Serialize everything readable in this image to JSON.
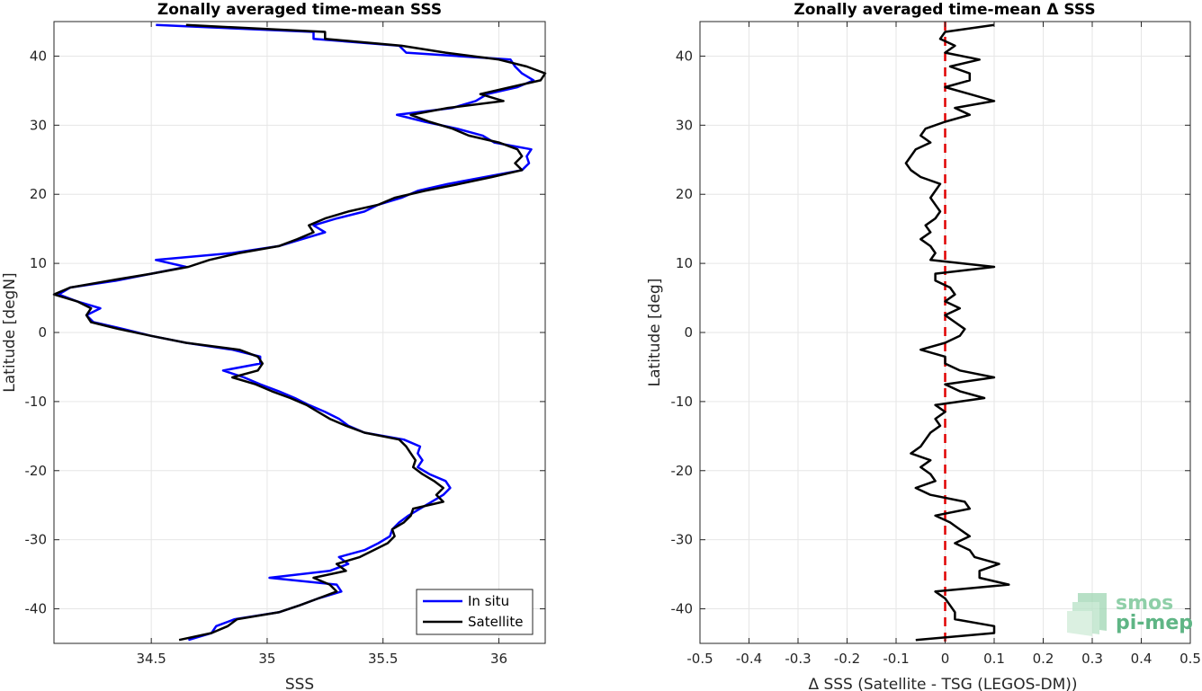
{
  "chart_data": [
    {
      "type": "line",
      "title": "Zonally averaged time-mean SSS",
      "xlabel": "SSS",
      "ylabel": "Latitude [degN]",
      "xlim": [
        34.08,
        36.2
      ],
      "ylim": [
        -45,
        45
      ],
      "xticks": [
        34.5,
        35,
        35.5,
        36
      ],
      "yticks": [
        -40,
        -30,
        -20,
        -10,
        0,
        10,
        20,
        30,
        40
      ],
      "grid": true,
      "legend": {
        "placement": "bottom-right",
        "entries": [
          "In situ",
          "Satellite"
        ]
      },
      "series": [
        {
          "name": "In situ",
          "color": "#0000ff",
          "lat": [
            -44.5,
            -43.5,
            -42.5,
            -41.5,
            -40.5,
            -39.5,
            -38.5,
            -37.5,
            -36.5,
            -35.5,
            -34.5,
            -33.5,
            -32.5,
            -31.5,
            -30.5,
            -29.5,
            -28.5,
            -27.5,
            -26.5,
            -25.5,
            -24.5,
            -23.5,
            -22.5,
            -21.5,
            -20.5,
            -19.5,
            -18.5,
            -17.5,
            -16.5,
            -15.5,
            -14.5,
            -13.5,
            -12.5,
            -11.5,
            -10.5,
            -9.5,
            -8.5,
            -7.5,
            -6.5,
            -5.5,
            -4.5,
            -3.5,
            -2.5,
            -1.5,
            -0.5,
            0.5,
            1.5,
            2.5,
            3.5,
            4.5,
            5.5,
            6.5,
            7.5,
            8.5,
            9.5,
            10.5,
            11.5,
            12.5,
            13.5,
            14.5,
            15.5,
            16.5,
            17.5,
            18.5,
            19.5,
            20.5,
            21.5,
            22.5,
            23.5,
            24.5,
            25.5,
            26.5,
            27.5,
            28.5,
            29.5,
            30.5,
            31.5,
            32.5,
            33.5,
            34.5,
            35.5,
            36.5,
            37.5,
            38.5,
            39.5,
            40.5,
            41.5,
            42.5,
            43.5,
            44.5
          ],
          "values": [
            34.66,
            34.76,
            34.78,
            34.86,
            35.05,
            35.14,
            35.22,
            35.32,
            35.3,
            35.01,
            35.27,
            35.35,
            35.31,
            35.42,
            35.48,
            35.53,
            35.54,
            35.57,
            35.61,
            35.66,
            35.71,
            35.76,
            35.79,
            35.77,
            35.7,
            35.65,
            35.67,
            35.65,
            35.66,
            35.59,
            35.42,
            35.35,
            35.31,
            35.25,
            35.18,
            35.12,
            35.05,
            34.97,
            34.9,
            34.81,
            34.97,
            34.97,
            34.85,
            34.65,
            34.5,
            34.38,
            34.25,
            34.22,
            34.28,
            34.18,
            34.1,
            34.15,
            34.35,
            34.5,
            34.65,
            34.52,
            34.85,
            35.05,
            35.15,
            35.25,
            35.2,
            35.3,
            35.42,
            35.48,
            35.58,
            35.65,
            35.78,
            35.94,
            36.1,
            36.13,
            36.12,
            36.14,
            35.98,
            35.93,
            35.82,
            35.68,
            35.56,
            35.8,
            35.9,
            35.95,
            36.08,
            36.15,
            36.1,
            36.07,
            36.05,
            35.6,
            35.57,
            35.2,
            35.2,
            34.52
          ],
          "opacity_note": ""
        },
        {
          "name": "Satellite",
          "color": "#000000",
          "lat": [
            -44.5,
            -43.5,
            -42.5,
            -41.5,
            -40.5,
            -39.5,
            -38.5,
            -37.5,
            -36.5,
            -35.5,
            -34.5,
            -33.5,
            -32.5,
            -31.5,
            -30.5,
            -29.5,
            -28.5,
            -27.5,
            -26.5,
            -25.5,
            -24.5,
            -23.5,
            -22.5,
            -21.5,
            -20.5,
            -19.5,
            -18.5,
            -17.5,
            -16.5,
            -15.5,
            -14.5,
            -13.5,
            -12.5,
            -11.5,
            -10.5,
            -9.5,
            -8.5,
            -7.5,
            -6.5,
            -5.5,
            -4.5,
            -3.5,
            -2.5,
            -1.5,
            -0.5,
            0.5,
            1.5,
            2.5,
            3.5,
            4.5,
            5.5,
            6.5,
            7.5,
            8.5,
            9.5,
            10.5,
            11.5,
            12.5,
            13.5,
            14.5,
            15.5,
            16.5,
            17.5,
            18.5,
            19.5,
            20.5,
            21.5,
            22.5,
            23.5,
            24.5,
            25.5,
            26.5,
            27.5,
            28.5,
            29.5,
            30.5,
            31.5,
            32.5,
            33.5,
            34.5,
            35.5,
            36.5,
            37.5,
            38.5,
            39.5,
            40.5,
            41.5,
            42.5,
            43.5,
            44.5
          ],
          "values": [
            34.62,
            34.76,
            34.83,
            34.87,
            35.05,
            35.14,
            35.22,
            35.3,
            35.27,
            35.2,
            35.34,
            35.3,
            35.4,
            35.46,
            35.52,
            35.55,
            35.54,
            35.59,
            35.62,
            35.63,
            35.76,
            35.73,
            35.76,
            35.72,
            35.67,
            35.63,
            35.64,
            35.62,
            35.6,
            35.57,
            35.42,
            35.34,
            35.27,
            35.22,
            35.17,
            35.1,
            35.02,
            34.95,
            34.85,
            34.96,
            34.98,
            34.96,
            34.88,
            34.65,
            34.5,
            34.36,
            34.24,
            34.22,
            34.24,
            34.18,
            34.08,
            34.15,
            34.32,
            34.5,
            34.66,
            34.75,
            34.88,
            35.05,
            35.13,
            35.2,
            35.18,
            35.25,
            35.35,
            35.48,
            35.55,
            35.68,
            35.83,
            35.97,
            36.1,
            36.07,
            36.1,
            36.08,
            36.0,
            35.87,
            35.8,
            35.7,
            35.62,
            35.78,
            36.02,
            35.92,
            36.05,
            36.18,
            36.2,
            36.12,
            36.0,
            35.77,
            35.58,
            35.25,
            35.25,
            34.65
          ]
        }
      ]
    },
    {
      "type": "line",
      "title": "Zonally averaged time-mean Δ SSS",
      "xlabel": "Δ SSS (Satellite - TSG (LEGOS-DM))",
      "ylabel": "Latitude [deg]",
      "xlim": [
        -0.5,
        0.5
      ],
      "ylim": [
        -45,
        45
      ],
      "xticks": [
        -0.5,
        -0.4,
        -0.3,
        -0.2,
        -0.1,
        0,
        0.1,
        0.2,
        0.3,
        0.4,
        0.5
      ],
      "yticks": [
        -40,
        -30,
        -20,
        -10,
        0,
        10,
        20,
        30,
        40
      ],
      "grid": true,
      "reference_line": {
        "x": 0,
        "color": "#e00000",
        "style": "dashed"
      },
      "series": [
        {
          "color": "#000000",
          "lat": [
            -44.5,
            -43.5,
            -42.5,
            -41.5,
            -40.5,
            -39.5,
            -38.5,
            -37.5,
            -36.5,
            -35.5,
            -34.5,
            -33.5,
            -32.5,
            -31.5,
            -30.5,
            -29.5,
            -28.5,
            -27.5,
            -26.5,
            -25.5,
            -24.5,
            -23.5,
            -22.5,
            -21.5,
            -20.5,
            -19.5,
            -18.5,
            -17.5,
            -16.5,
            -15.5,
            -14.5,
            -13.5,
            -12.5,
            -11.5,
            -10.5,
            -9.5,
            -8.5,
            -7.5,
            -6.5,
            -5.5,
            -4.5,
            -3.5,
            -2.5,
            -1.5,
            -0.5,
            0.5,
            1.5,
            2.5,
            3.5,
            4.5,
            5.5,
            6.5,
            7.5,
            8.5,
            9.5,
            10.5,
            11.5,
            12.5,
            13.5,
            14.5,
            15.5,
            16.5,
            17.5,
            18.5,
            19.5,
            20.5,
            21.5,
            22.5,
            23.5,
            24.5,
            25.5,
            26.5,
            27.5,
            28.5,
            29.5,
            30.5,
            31.5,
            32.5,
            33.5,
            34.5,
            35.5,
            36.5,
            37.5,
            38.5,
            39.5,
            40.5,
            41.5,
            42.5,
            43.5,
            44.5
          ],
          "values": [
            -0.06,
            0.1,
            0.1,
            0.02,
            0.02,
            0.01,
            0.0,
            -0.02,
            0.13,
            0.07,
            0.07,
            0.11,
            0.06,
            0.05,
            0.02,
            0.05,
            0.03,
            0.01,
            -0.02,
            0.05,
            0.04,
            -0.03,
            -0.06,
            -0.02,
            -0.03,
            -0.05,
            -0.03,
            -0.07,
            -0.05,
            -0.04,
            -0.03,
            -0.01,
            -0.02,
            0.0,
            -0.02,
            0.08,
            0.03,
            0.0,
            0.1,
            0.03,
            0.0,
            0.0,
            -0.05,
            0.0,
            0.03,
            0.04,
            0.02,
            0.0,
            0.03,
            0.0,
            0.02,
            0.01,
            -0.02,
            -0.02,
            0.1,
            -0.03,
            -0.02,
            -0.03,
            -0.05,
            -0.03,
            -0.04,
            -0.02,
            -0.01,
            -0.02,
            -0.03,
            -0.02,
            -0.01,
            -0.05,
            -0.07,
            -0.08,
            -0.07,
            -0.06,
            -0.03,
            -0.05,
            -0.04,
            0.0,
            0.05,
            0.02,
            0.1,
            0.05,
            0.0,
            0.05,
            0.05,
            0.01,
            0.07,
            0.0,
            0.02,
            -0.01,
            0.0,
            0.1
          ]
        }
      ]
    }
  ],
  "logo": {
    "line1": "smos",
    "line2": "pi-mep"
  }
}
